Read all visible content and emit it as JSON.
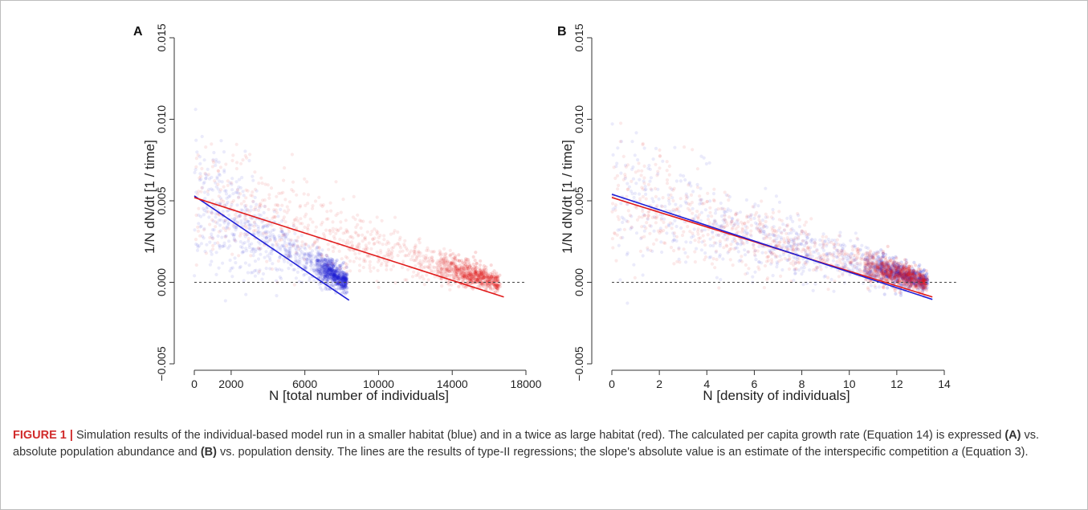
{
  "figure": {
    "panels": [
      {
        "letter": "A",
        "xlabel": "N [total number of individuals]",
        "ylabel": "1/N dN/dt [1 / time]"
      },
      {
        "letter": "B",
        "xlabel": "N [density of individuals]",
        "ylabel": "1/N dN/dt [1 / time]"
      }
    ]
  },
  "caption": {
    "label": "FIGURE 1 |",
    "p1": " Simulation results of the individual-based model run in a smaller habitat (blue) and in a twice as large habitat (red). The calculated per capita growth rate (Equation 14) is expressed ",
    "ref_a": "(A)",
    "p2": " vs. absolute population abundance and ",
    "ref_b": "(B)",
    "p3": " vs. population density. The lines are the results of type-II regressions; the slope's absolute value is an estimate of the interspecific competition ",
    "symbol": "a",
    "p4": " (Equation 3)."
  },
  "colors": {
    "blue": "#1f1fd6",
    "red": "#e01a1a",
    "axis": "#333333"
  },
  "chart_data": [
    {
      "type": "scatter",
      "xlabel": "N [total number of individuals]",
      "ylabel": "1/N dN/dt [1 / time]",
      "xlim": [
        0,
        18000
      ],
      "ylim": [
        -0.005,
        0.015
      ],
      "xticks": [
        0,
        2000,
        6000,
        10000,
        14000,
        18000
      ],
      "yticks": [
        -0.005,
        0.0,
        0.005,
        0.01,
        0.015
      ],
      "xtick_labels": [
        "0",
        "2000",
        "6000",
        "10000",
        "14000",
        "18000"
      ],
      "ytick_labels": [
        "−0.005",
        "0.000",
        "0.005",
        "0.010",
        "0.015"
      ],
      "reference_line": {
        "y": 0.0,
        "style": "dashed",
        "x_range": [
          0,
          18000
        ]
      },
      "series": [
        {
          "color": "blue",
          "x_range": [
            0,
            8400
          ],
          "k": 8300,
          "intercept": 0.0053,
          "slope": -7.7e-07,
          "fit_x": [
            0,
            8400
          ],
          "fit_y": [
            0.0053,
            -0.0011
          ]
        },
        {
          "color": "red",
          "x_range": [
            0,
            16800
          ],
          "k": 16600,
          "intercept": 0.0052,
          "slope": -3.6e-07,
          "fit_x": [
            0,
            16800
          ],
          "fit_y": [
            0.0052,
            -0.0009
          ]
        }
      ]
    },
    {
      "type": "scatter",
      "xlabel": "N [density of individuals]",
      "ylabel": "1/N dN/dt [1 / time]",
      "xlim": [
        0,
        14
      ],
      "ylim": [
        -0.005,
        0.015
      ],
      "xticks": [
        0,
        2,
        4,
        6,
        8,
        10,
        12,
        14
      ],
      "yticks": [
        -0.005,
        0.0,
        0.005,
        0.01,
        0.015
      ],
      "xtick_labels": [
        "0",
        "2",
        "4",
        "6",
        "8",
        "10",
        "12",
        "14"
      ],
      "ytick_labels": [
        "−0.005",
        "0.000",
        "0.005",
        "0.010",
        "0.015"
      ],
      "reference_line": {
        "y": 0.0,
        "style": "dashed",
        "x_range": [
          0,
          14.5
        ]
      },
      "series": [
        {
          "color": "blue",
          "x_range": [
            0,
            13.5
          ],
          "k": 13.3,
          "intercept": 0.0054,
          "slope": -0.000478,
          "fit_x": [
            0,
            13.5
          ],
          "fit_y": [
            0.0054,
            -0.00105
          ]
        },
        {
          "color": "red",
          "x_range": [
            0,
            13.5
          ],
          "k": 13.3,
          "intercept": 0.0052,
          "slope": -0.000452,
          "fit_x": [
            0,
            13.5
          ],
          "fit_y": [
            0.0052,
            -0.0009
          ]
        }
      ]
    }
  ]
}
